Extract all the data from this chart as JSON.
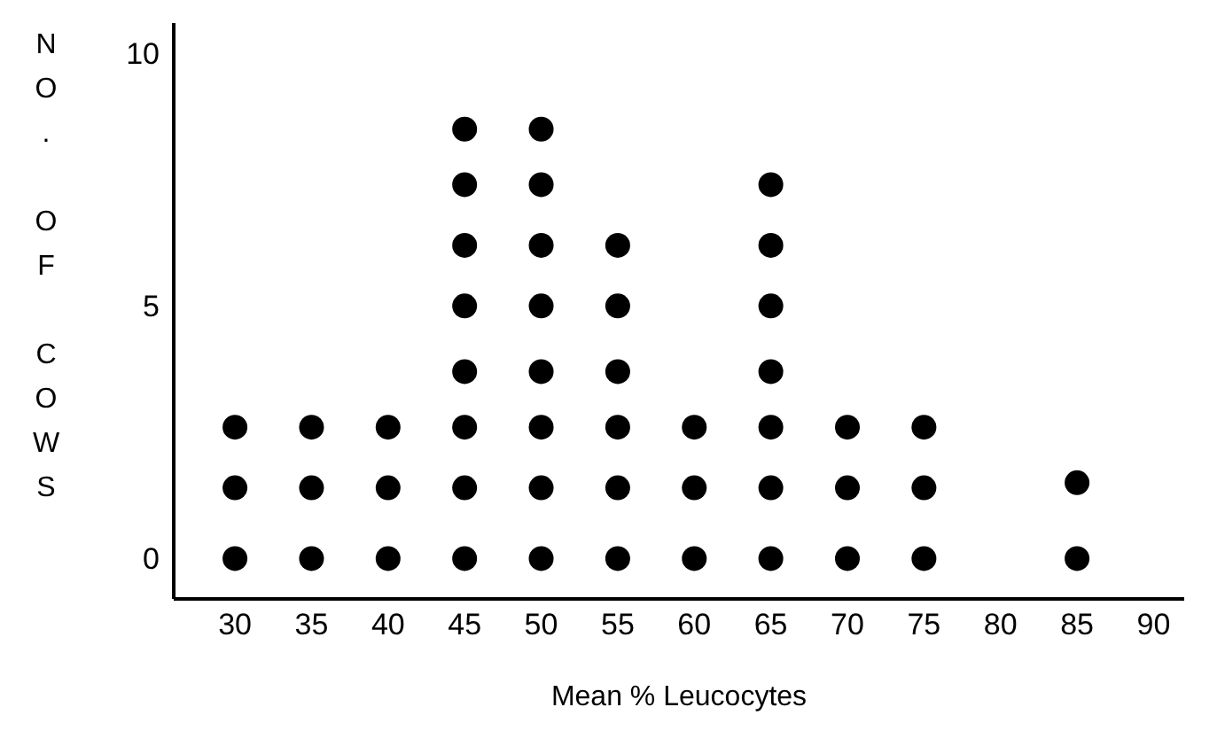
{
  "chart_data": {
    "type": "scatter",
    "xlabel": "Mean % Leucocytes",
    "ylabel": "NO. OF COWS",
    "marker": "circle",
    "grid": false,
    "xlim": [
      26,
      92
    ],
    "xticks": [
      30,
      35,
      40,
      45,
      50,
      55,
      60,
      65,
      70,
      75,
      80,
      85,
      90
    ],
    "ylim": [
      -0.8,
      10.6
    ],
    "yticks": [
      0,
      5,
      10
    ],
    "series": [
      {
        "color": "#000000",
        "x": [
          30,
          30,
          30,
          35,
          35,
          35,
          40,
          40,
          40,
          45,
          45,
          45,
          45,
          45,
          45,
          45,
          45,
          50,
          50,
          50,
          50,
          50,
          50,
          50,
          50,
          55,
          55,
          55,
          55,
          55,
          55,
          60,
          60,
          60,
          65,
          65,
          65,
          65,
          65,
          65,
          65,
          70,
          70,
          70,
          75,
          75,
          75,
          85,
          85
        ],
        "values": [
          0,
          1.4,
          2.6,
          0,
          1.4,
          2.6,
          0,
          1.4,
          2.6,
          0,
          1.4,
          2.6,
          3.7,
          5,
          6.2,
          7.4,
          8.5,
          0,
          1.4,
          2.6,
          3.7,
          5,
          6.2,
          7.4,
          8.5,
          0,
          1.4,
          2.6,
          3.7,
          5,
          6.2,
          0,
          1.4,
          2.6,
          0,
          1.4,
          2.6,
          3.7,
          5,
          6.2,
          7.4,
          0,
          1.4,
          2.6,
          0,
          1.4,
          2.6,
          0,
          1.5
        ]
      }
    ]
  }
}
